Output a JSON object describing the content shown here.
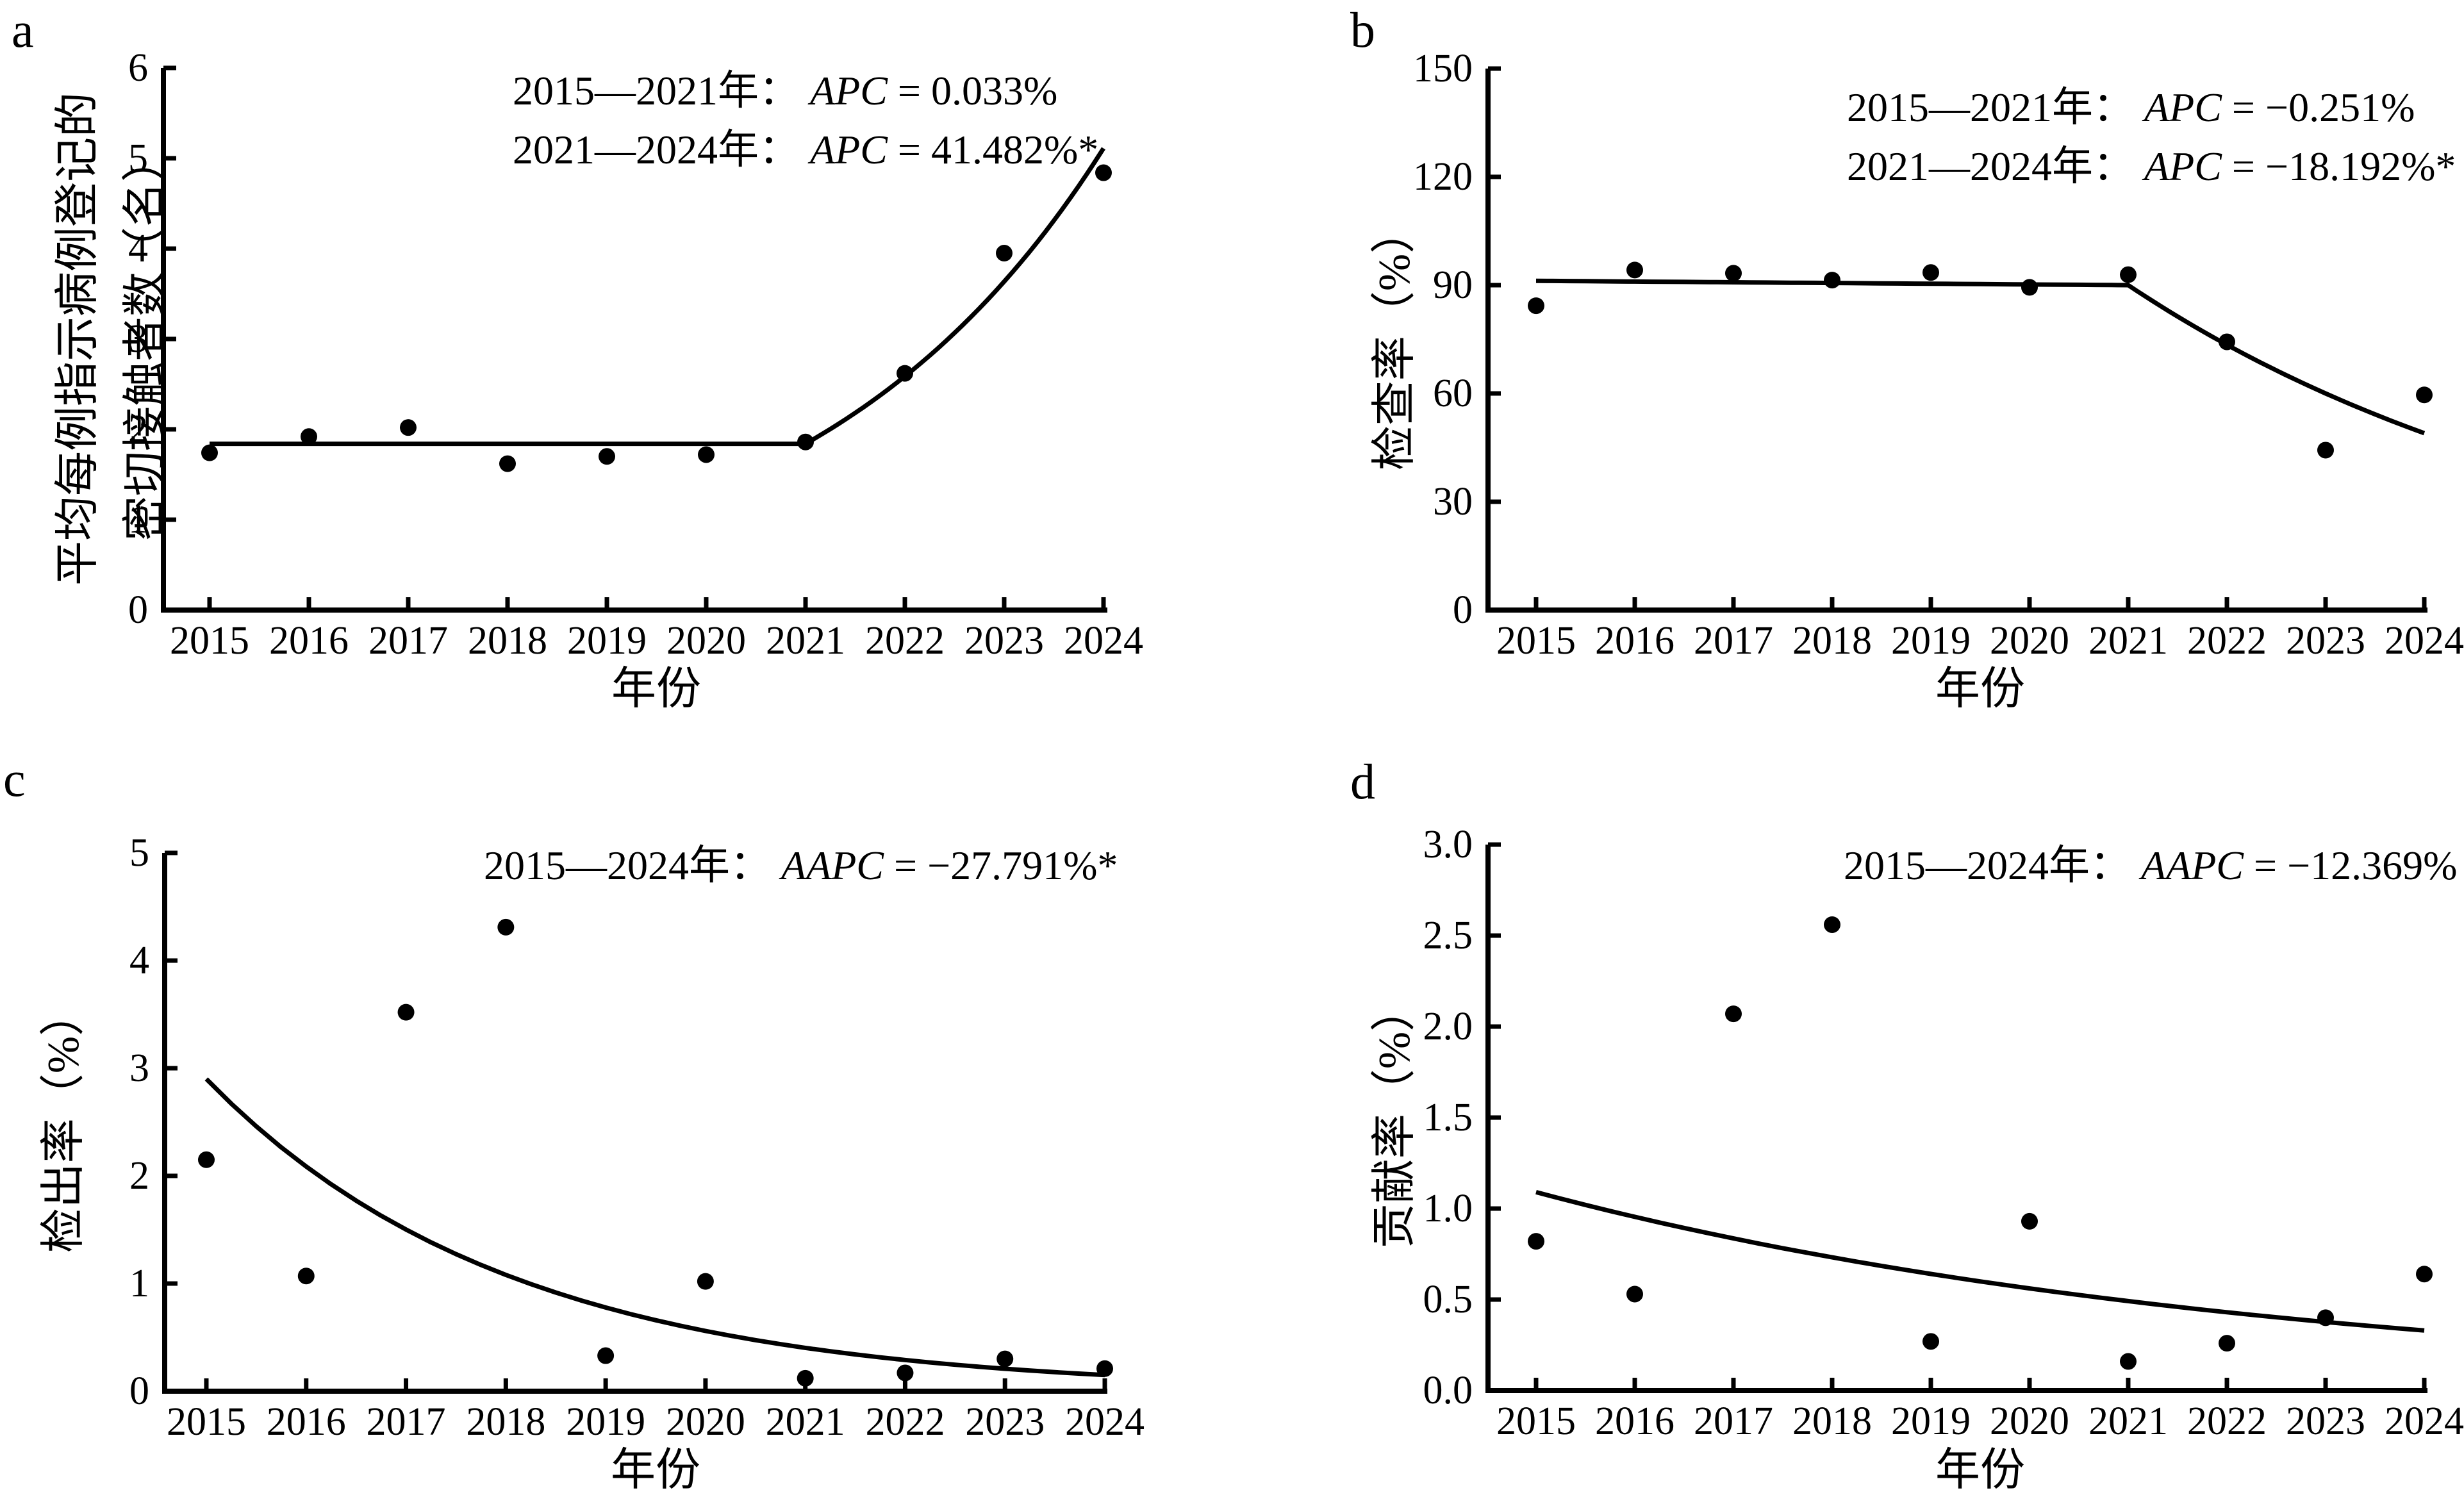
{
  "figure": {
    "background": "#ffffff",
    "line_color": "#000000",
    "point_color": "#000000"
  },
  "chart_data": [
    {
      "panel": "a",
      "type": "scatter",
      "xlabel": "年份",
      "ylabel_lines": [
        "平均每例指示病例登记的",
        "密切接触者数（名）"
      ],
      "x": [
        2015,
        2016,
        2017,
        2018,
        2019,
        2020,
        2021,
        2022,
        2023,
        2024
      ],
      "x_tick_labels": [
        "2015",
        "2016",
        "2017",
        "2018",
        "2019",
        "2020",
        "2021",
        "2022",
        "2023",
        "2024"
      ],
      "scatter": [
        1.74,
        1.92,
        2.02,
        1.62,
        1.7,
        1.72,
        1.86,
        2.62,
        3.95,
        4.84
      ],
      "trend_segments": [
        {
          "x": [
            2015,
            2021
          ],
          "y": [
            1.84,
            1.84
          ]
        },
        {
          "x": [
            2021,
            2024
          ],
          "y": [
            1.84,
            5.11
          ]
        }
      ],
      "ylim": [
        0,
        6
      ],
      "yticks": [
        0,
        1,
        2,
        3,
        4,
        5,
        6
      ],
      "ytick_labels": [
        "0",
        "1",
        "2",
        "3",
        "4",
        "5",
        "6"
      ],
      "annotations": [
        {
          "period": "2015—2021年：",
          "stat": "APC",
          "value": " = 0.033%"
        },
        {
          "period": "2021—2024年：",
          "stat": "APC",
          "value": " = 41.482%*"
        }
      ],
      "trend_stats": [
        {
          "period": "2015—2021",
          "measure": "APC",
          "percent": 0.033,
          "significant": false
        },
        {
          "period": "2021—2024",
          "measure": "APC",
          "percent": 41.482,
          "significant": true
        }
      ]
    },
    {
      "panel": "b",
      "type": "scatter",
      "xlabel": "年份",
      "ylabel_lines": [
        "检查率（%）"
      ],
      "x": [
        2015,
        2016,
        2017,
        2018,
        2019,
        2020,
        2021,
        2022,
        2023,
        2024
      ],
      "x_tick_labels": [
        "2015",
        "2016",
        "2017",
        "2018",
        "2019",
        "2020",
        "2021",
        "2022",
        "2023",
        "2024"
      ],
      "scatter": [
        84.3,
        94.2,
        93.3,
        91.4,
        93.5,
        89.4,
        92.9,
        74.3,
        44.3,
        59.6
      ],
      "trend_segments": [
        {
          "x": [
            2015,
            2021
          ],
          "y": [
            91.2,
            90.0
          ]
        },
        {
          "x": [
            2021,
            2024
          ],
          "y": [
            90.0,
            49.0
          ]
        }
      ],
      "ylim": [
        0,
        150
      ],
      "yticks": [
        0,
        30,
        60,
        90,
        120,
        150
      ],
      "ytick_labels": [
        "0",
        "30",
        "60",
        "90",
        "120",
        "150"
      ],
      "annotations": [
        {
          "period": "2015—2021年：",
          "stat": "APC",
          "value": " = −0.251%"
        },
        {
          "period": "2021—2024年：",
          "stat": "APC",
          "value": " = −18.192%*"
        }
      ],
      "trend_stats": [
        {
          "period": "2015—2021",
          "measure": "APC",
          "percent": -0.251,
          "significant": false
        },
        {
          "period": "2021—2024",
          "measure": "APC",
          "percent": -18.192,
          "significant": true
        }
      ]
    },
    {
      "panel": "c",
      "type": "scatter",
      "xlabel": "年份",
      "ylabel_lines": [
        "检出率（%）"
      ],
      "x": [
        2015,
        2016,
        2017,
        2018,
        2019,
        2020,
        2021,
        2022,
        2023,
        2024
      ],
      "x_tick_labels": [
        "2015",
        "2016",
        "2017",
        "2018",
        "2019",
        "2020",
        "2021",
        "2022",
        "2023",
        "2024"
      ],
      "scatter": [
        2.15,
        1.07,
        3.52,
        4.31,
        0.33,
        1.02,
        0.12,
        0.17,
        0.3,
        0.21
      ],
      "trend_segments": [
        {
          "x": [
            2015,
            2024
          ],
          "y": [
            2.9,
            0.15
          ]
        }
      ],
      "ylim": [
        0,
        5
      ],
      "yticks": [
        0,
        1,
        2,
        3,
        4,
        5
      ],
      "ytick_labels": [
        "0",
        "1",
        "2",
        "3",
        "4",
        "5"
      ],
      "annotations": [
        {
          "period": "2015—2024年：",
          "stat": "AAPC",
          "value": " = −27.791%*"
        }
      ],
      "trend_stats": [
        {
          "period": "2015—2024",
          "measure": "AAPC",
          "percent": -27.791,
          "significant": true
        }
      ]
    },
    {
      "panel": "d",
      "type": "scatter",
      "xlabel": "年份",
      "ylabel_lines": [
        "贡献率（%）"
      ],
      "x": [
        2015,
        2016,
        2017,
        2018,
        2019,
        2020,
        2021,
        2022,
        2023,
        2024
      ],
      "x_tick_labels": [
        "2015",
        "2016",
        "2017",
        "2018",
        "2019",
        "2020",
        "2021",
        "2022",
        "2023",
        "2024"
      ],
      "scatter": [
        0.82,
        0.53,
        2.07,
        2.56,
        0.27,
        0.93,
        0.16,
        0.26,
        0.4,
        0.64
      ],
      "trend_segments": [
        {
          "x": [
            2015,
            2024
          ],
          "y": [
            1.09,
            0.33
          ]
        }
      ],
      "ylim": [
        0,
        3
      ],
      "yticks": [
        0,
        0.5,
        1,
        1.5,
        2,
        2.5,
        3
      ],
      "ytick_labels": [
        "0.0",
        "0.5",
        "1.0",
        "1.5",
        "2.0",
        "2.5",
        "3.0"
      ],
      "annotations": [
        {
          "period": "2015—2024年：",
          "stat": "AAPC",
          "value": " = −12.369%"
        }
      ],
      "trend_stats": [
        {
          "period": "2015—2024",
          "measure": "AAPC",
          "percent": -12.369,
          "significant": false
        }
      ]
    }
  ]
}
